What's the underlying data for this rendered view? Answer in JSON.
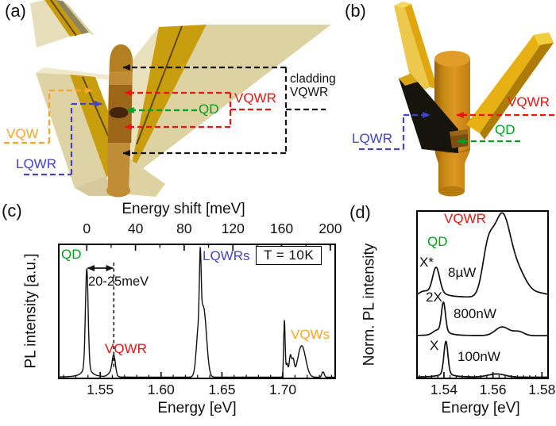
{
  "figure": {
    "panel_a": {
      "tag": "(a)",
      "labels": {
        "vqw": "VQW",
        "lqwr": "LQWR",
        "qd": "QD",
        "vqwr": "VQWR",
        "cladding_line1": "cladding",
        "cladding_line2": "VQWR"
      }
    },
    "panel_b": {
      "tag": "(b)",
      "labels": {
        "lqwr": "LQWR",
        "vqwr": "VQWR",
        "qd": "QD"
      }
    },
    "panel_c": {
      "tag": "(c)",
      "temperature": "T = 10K",
      "shift_annotation": "20-25meV",
      "labels": {
        "qd": "QD",
        "vqwr": "VQWR",
        "lqwrs": "LQWRs",
        "vqws": "VQWs"
      },
      "xlabel": "Energy [eV]",
      "xlabel_top": "Energy shift [meV]",
      "ylabel": "PL intensity [a.u.]"
    },
    "panel_d": {
      "tag": "(d)",
      "labels": {
        "vqwr": "VQWR",
        "qd": "QD",
        "xstar": "X*",
        "power_high": "8µW",
        "biexciton": "2X",
        "power_mid": "800nW",
        "exciton": "X",
        "power_low": "100nW"
      },
      "xlabel": "Energy [eV]",
      "ylabel": "Norm. PL intensity"
    }
  },
  "colors": {
    "qd_green": "#00a01e",
    "vqwr_red": "#ee1212",
    "lqwr_blue": "#4242cb",
    "vqw_orange": "#ffa428",
    "curve": "#111111"
  },
  "chart_data": [
    {
      "id": "panel_c",
      "type": "line",
      "title": "PL spectrum at T = 10K",
      "xlabel": "Energy [eV]",
      "xlabel_top": "Energy shift [meV]",
      "ylabel": "PL intensity [a.u.]",
      "xlim": [
        1.516,
        1.743
      ],
      "grid": false,
      "x_ticks_bottom": {
        "step_minor": 0.01,
        "major": [
          {
            "v": 1.55,
            "label": "1.55"
          },
          {
            "v": 1.6,
            "label": "1.60"
          },
          {
            "v": 1.65,
            "label": "1.65"
          },
          {
            "v": 1.7,
            "label": "1.70"
          }
        ]
      },
      "x_ticks_top_meV": {
        "zero_eV": 1.539,
        "step_minor": 20,
        "max": 200,
        "major": [
          {
            "v": 0,
            "label": "0"
          },
          {
            "v": 40,
            "label": "40"
          },
          {
            "v": 80,
            "label": "80"
          },
          {
            "v": 120,
            "label": "120"
          },
          {
            "v": 160,
            "label": "160"
          },
          {
            "v": 200,
            "label": "200"
          }
        ]
      },
      "annotations": {
        "temperature": "T = 10K",
        "shift_label": "20-25meV",
        "dashed_line_eV": 1.5612,
        "arrow_span_eV": [
          1.539,
          1.5612
        ]
      },
      "peaks": [
        {
          "name": "QD",
          "c": 1.539,
          "h": 0.72,
          "w": 0.0011
        },
        {
          "c": 1.539,
          "h": 0.09,
          "w": 0.0035,
          "t": "l"
        },
        {
          "name": "VQWR",
          "c": 1.5612,
          "h": 0.14,
          "w": 0.0013
        },
        {
          "c": 1.5592,
          "h": 0.035,
          "w": 0.0025
        },
        {
          "name": "LQWRs",
          "c": 1.6322,
          "h": 0.5,
          "w": 0.0007
        },
        {
          "c": 1.6335,
          "h": 0.42,
          "w": 0.0028
        },
        {
          "c": 1.6302,
          "h": 0.15,
          "w": 0.0015
        },
        {
          "c": 1.636,
          "h": 0.18,
          "w": 0.002
        },
        {
          "name": "VQWs",
          "c": 1.7013,
          "h": 0.42,
          "w": 0.0006
        },
        {
          "c": 1.7034,
          "h": 0.1,
          "w": 0.0008
        },
        {
          "c": 1.7062,
          "h": 0.16,
          "w": 0.001
        },
        {
          "c": 1.7085,
          "h": 0.11,
          "w": 0.0009
        },
        {
          "c": 1.7155,
          "h": 0.235,
          "w": 0.0032
        },
        {
          "c": 1.733,
          "h": 0.04,
          "w": 0.001
        }
      ]
    },
    {
      "id": "panel_d",
      "type": "line",
      "title": "Power-dependent normalized PL",
      "xlabel": "Energy [eV]",
      "ylabel": "Norm. PL intensity",
      "xlim": [
        1.529,
        1.5825
      ],
      "grid": false,
      "x_ticks_bottom": {
        "step_minor": 0.0025,
        "major": [
          {
            "v": 1.54,
            "label": "1.54"
          },
          {
            "v": 1.56,
            "label": "1.56"
          },
          {
            "v": 1.58,
            "label": "1.58"
          }
        ]
      },
      "curves": [
        {
          "label": "100nW",
          "offset_frac": 0,
          "peaks": [
            {
              "name": "X",
              "c": 1.5408,
              "h": 0.19,
              "w": 0.0008
            },
            {
              "c": 1.5408,
              "h": 0.024,
              "w": 0.003,
              "t": "l"
            },
            {
              "name": "VQWR",
              "c": 1.5615,
              "h": 0.019,
              "w": 0.0035
            }
          ]
        },
        {
          "label": "800nW",
          "offset_frac": 0.248,
          "peaks": [
            {
              "name": "2X",
              "c": 1.5398,
              "h": 0.165,
              "w": 0.0008
            },
            {
              "c": 1.5398,
              "h": 0.033,
              "w": 0.0025,
              "t": "l"
            },
            {
              "c": 1.5368,
              "h": 0.019,
              "w": 0.0015
            },
            {
              "name": "VQWR",
              "c": 1.5638,
              "h": 0.052,
              "w": 0.0028
            },
            {
              "c": 1.5705,
              "h": 0.024,
              "w": 0.0022
            }
          ]
        },
        {
          "label": "8µW",
          "offset_frac": 0.476,
          "peaks": [
            {
              "name": "X*",
              "c": 1.5368,
              "h": 0.142,
              "w": 0.0014
            },
            {
              "c": 1.5368,
              "h": 0.038,
              "w": 0.004,
              "t": "l"
            },
            {
              "c": 1.5315,
              "h": 0.024,
              "w": 0.002
            },
            {
              "c": 1.5578,
              "h": 0.227,
              "w": 0.0022
            },
            {
              "name": "VQWR",
              "c": 1.5638,
              "h": 0.493,
              "w": 0.0036
            },
            {
              "c": 1.571,
              "h": 0.104,
              "w": 0.003
            },
            {
              "c": 1.578,
              "h": 0.028,
              "w": 0.005
            }
          ]
        }
      ]
    }
  ]
}
